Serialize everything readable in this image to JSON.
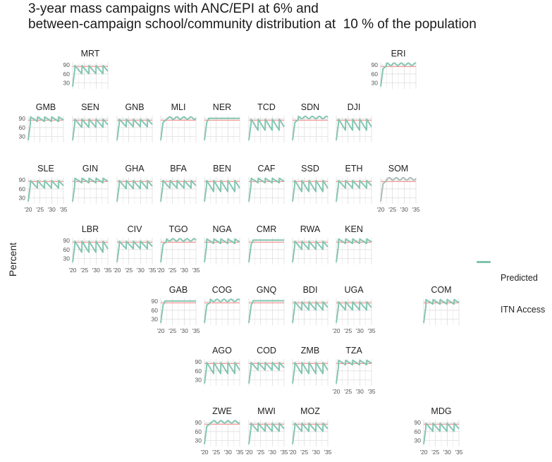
{
  "title_lines": [
    "3-year mass campaigns with ANC/EPI at 6% and",
    "between-campaign school/community distribution at  10 % of the population"
  ],
  "y_axis_label": "Percent",
  "legend": {
    "label_lines": [
      "Predicted",
      "ITN Access"
    ]
  },
  "colors": {
    "series": "#7ec3ae",
    "target_line": "#f08080",
    "grid": "#d9d9d9"
  },
  "chart_data": {
    "type": "line",
    "facet": "small-multiples-map",
    "ylabel": "Percent",
    "yticks": [
      30,
      60,
      90
    ],
    "xticks": [
      "'20",
      "'25",
      "'30",
      "'35"
    ],
    "xlim": [
      2020,
      2035
    ],
    "ylim": [
      10,
      100
    ],
    "reference_line_y": 85,
    "series": [
      {
        "name": "Predicted ITN Access"
      }
    ],
    "panels": [
      {
        "name": "MRT",
        "row": 0,
        "col": 1,
        "pattern": "campaign",
        "ytick_labels": true,
        "xtick_labels": false
      },
      {
        "name": "ERI",
        "row": 0,
        "col": 8,
        "pattern": "high",
        "ytick_labels": true,
        "xtick_labels": false
      },
      {
        "name": "GMB",
        "row": 1,
        "col": 0,
        "pattern": "campaign-high",
        "ytick_labels": true,
        "xtick_labels": false
      },
      {
        "name": "SEN",
        "row": 1,
        "col": 1,
        "pattern": "campaign",
        "ytick_labels": false,
        "xtick_labels": false
      },
      {
        "name": "GNB",
        "row": 1,
        "col": 2,
        "pattern": "campaign-mixed",
        "ytick_labels": false,
        "xtick_labels": false
      },
      {
        "name": "MLI",
        "row": 1,
        "col": 3,
        "pattern": "high",
        "ytick_labels": false,
        "xtick_labels": false
      },
      {
        "name": "NER",
        "row": 1,
        "col": 4,
        "pattern": "flat",
        "ytick_labels": false,
        "xtick_labels": false
      },
      {
        "name": "TCD",
        "row": 1,
        "col": 5,
        "pattern": "campaign-deep",
        "ytick_labels": false,
        "xtick_labels": false
      },
      {
        "name": "SDN",
        "row": 1,
        "col": 6,
        "pattern": "high",
        "ytick_labels": false,
        "xtick_labels": false
      },
      {
        "name": "DJI",
        "row": 1,
        "col": 7,
        "pattern": "campaign-deep",
        "ytick_labels": false,
        "xtick_labels": false
      },
      {
        "name": "SLE",
        "row": 2,
        "col": 0,
        "pattern": "campaign-mixed",
        "ytick_labels": true,
        "xtick_labels": true
      },
      {
        "name": "GIN",
        "row": 2,
        "col": 1,
        "pattern": "campaign-high",
        "ytick_labels": false,
        "xtick_labels": false
      },
      {
        "name": "GHA",
        "row": 2,
        "col": 2,
        "pattern": "campaign",
        "ytick_labels": false,
        "xtick_labels": false
      },
      {
        "name": "BFA",
        "row": 2,
        "col": 3,
        "pattern": "campaign-mixed",
        "ytick_labels": false,
        "xtick_labels": false
      },
      {
        "name": "BEN",
        "row": 2,
        "col": 4,
        "pattern": "campaign-deep",
        "ytick_labels": false,
        "xtick_labels": false
      },
      {
        "name": "CAF",
        "row": 2,
        "col": 5,
        "pattern": "campaign-high",
        "ytick_labels": false,
        "xtick_labels": false
      },
      {
        "name": "SSD",
        "row": 2,
        "col": 6,
        "pattern": "campaign-deep",
        "ytick_labels": false,
        "xtick_labels": false
      },
      {
        "name": "ETH",
        "row": 2,
        "col": 7,
        "pattern": "campaign-mixed",
        "ytick_labels": false,
        "xtick_labels": false
      },
      {
        "name": "SOM",
        "row": 2,
        "col": 8,
        "pattern": "high-gray",
        "ytick_labels": false,
        "xtick_labels": true
      },
      {
        "name": "LBR",
        "row": 3,
        "col": 1,
        "pattern": "campaign-deep",
        "ytick_labels": true,
        "xtick_labels": true
      },
      {
        "name": "CIV",
        "row": 3,
        "col": 2,
        "pattern": "campaign-mixed",
        "ytick_labels": false,
        "xtick_labels": true
      },
      {
        "name": "TGO",
        "row": 3,
        "col": 3,
        "pattern": "high",
        "ytick_labels": false,
        "xtick_labels": true
      },
      {
        "name": "NGA",
        "row": 3,
        "col": 4,
        "pattern": "campaign-high",
        "ytick_labels": false,
        "xtick_labels": false
      },
      {
        "name": "CMR",
        "row": 3,
        "col": 5,
        "pattern": "flat",
        "ytick_labels": false,
        "xtick_labels": false
      },
      {
        "name": "RWA",
        "row": 3,
        "col": 6,
        "pattern": "campaign",
        "ytick_labels": false,
        "xtick_labels": false
      },
      {
        "name": "KEN",
        "row": 3,
        "col": 7,
        "pattern": "campaign-high",
        "ytick_labels": false,
        "xtick_labels": false
      },
      {
        "name": "GAB",
        "row": 4,
        "col": 3,
        "pattern": "flat",
        "ytick_labels": true,
        "xtick_labels": true
      },
      {
        "name": "COG",
        "row": 4,
        "col": 4,
        "pattern": "high",
        "ytick_labels": false,
        "xtick_labels": false
      },
      {
        "name": "GNQ",
        "row": 4,
        "col": 5,
        "pattern": "flat",
        "ytick_labels": false,
        "xtick_labels": false
      },
      {
        "name": "BDI",
        "row": 4,
        "col": 6,
        "pattern": "campaign",
        "ytick_labels": false,
        "xtick_labels": false
      },
      {
        "name": "UGA",
        "row": 4,
        "col": 7,
        "pattern": "campaign",
        "ytick_labels": false,
        "xtick_labels": true
      },
      {
        "name": "COM",
        "row": 4,
        "col": 9,
        "pattern": "campaign-high",
        "ytick_labels": false,
        "xtick_labels": false
      },
      {
        "name": "AGO",
        "row": 5,
        "col": 4,
        "pattern": "campaign-deep",
        "ytick_labels": true,
        "xtick_labels": false
      },
      {
        "name": "COD",
        "row": 5,
        "col": 5,
        "pattern": "campaign-mixed",
        "ytick_labels": false,
        "xtick_labels": false
      },
      {
        "name": "ZMB",
        "row": 5,
        "col": 6,
        "pattern": "campaign-deep",
        "ytick_labels": false,
        "xtick_labels": false
      },
      {
        "name": "TZA",
        "row": 5,
        "col": 7,
        "pattern": "campaign-high",
        "ytick_labels": false,
        "xtick_labels": true
      },
      {
        "name": "ZWE",
        "row": 6,
        "col": 4,
        "pattern": "high",
        "ytick_labels": true,
        "xtick_labels": true
      },
      {
        "name": "MWI",
        "row": 6,
        "col": 5,
        "pattern": "campaign",
        "ytick_labels": false,
        "xtick_labels": true
      },
      {
        "name": "MOZ",
        "row": 6,
        "col": 6,
        "pattern": "campaign",
        "ytick_labels": false,
        "xtick_labels": true
      },
      {
        "name": "MDG",
        "row": 6,
        "col": 9,
        "pattern": "campaign",
        "ytick_labels": true,
        "xtick_labels": true
      }
    ]
  }
}
